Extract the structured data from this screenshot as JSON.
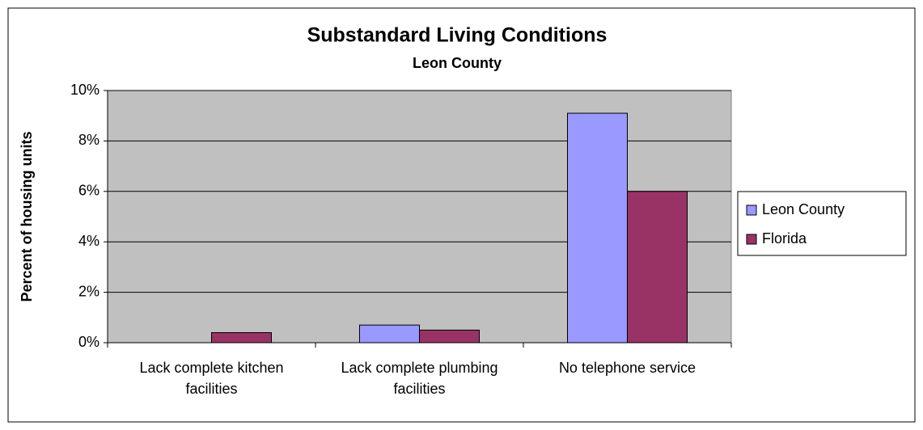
{
  "chart_data": {
    "type": "bar",
    "title": "Substandard Living Conditions",
    "subtitle": "Leon County",
    "y_label": "Percent of housing units",
    "categories": [
      "Lack complete kitchen facilities",
      "Lack complete plumbing facilities",
      "No telephone service"
    ],
    "series": [
      {
        "name": "Leon County",
        "color": "#9999ff",
        "values": [
          0,
          0.7,
          9.1
        ]
      },
      {
        "name": "Florida",
        "color": "#993366",
        "values": [
          0.4,
          0.5,
          6.0
        ]
      }
    ],
    "ylim": [
      0,
      10
    ],
    "yticks": [
      {
        "value": 0,
        "label": "0%"
      },
      {
        "value": 2,
        "label": "2%"
      },
      {
        "value": 4,
        "label": "4%"
      },
      {
        "value": 6,
        "label": "6%"
      },
      {
        "value": 8,
        "label": "8%"
      },
      {
        "value": 10,
        "label": "10%"
      }
    ],
    "grid": true,
    "legend": "right",
    "plot_background": "#c0c0c0"
  }
}
